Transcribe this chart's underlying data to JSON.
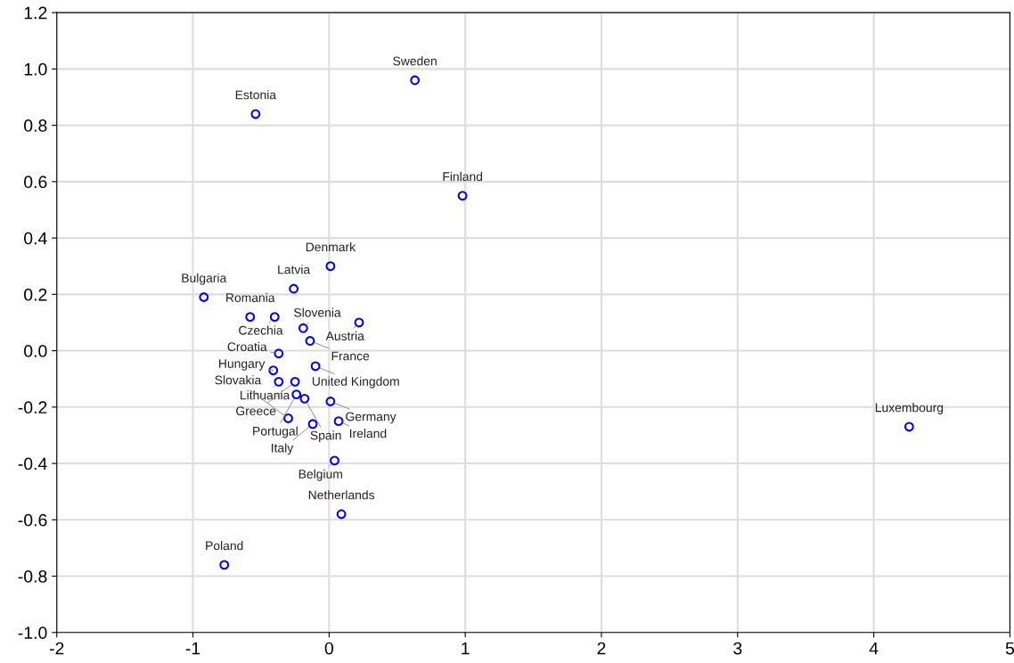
{
  "chart_data": {
    "type": "scatter",
    "series": [
      {
        "color": "#0000ff",
        "x": [
          0.63,
          -0.54,
          0.98,
          0.01,
          -0.26,
          -0.92,
          -0.58,
          -0.4,
          -0.19,
          0.22,
          -0.14,
          -0.37,
          -0.1,
          -0.41,
          -0.37,
          -0.25,
          -0.24,
          -0.18,
          0.01,
          0.07,
          -0.12,
          -0.3,
          4.26,
          0.04,
          0.09,
          -0.77
        ],
        "values": [
          0.96,
          0.84,
          0.55,
          0.3,
          0.22,
          0.19,
          0.12,
          0.12,
          0.08,
          0.1,
          0.035,
          -0.01,
          -0.055,
          -0.07,
          -0.11,
          -0.11,
          -0.155,
          -0.17,
          -0.18,
          -0.25,
          -0.26,
          -0.24,
          -0.27,
          -0.39,
          -0.58,
          -0.76
        ]
      }
    ],
    "annotations": [
      {
        "text": "Sweden",
        "x": 0.63,
        "y": 0.96
      },
      {
        "text": "Estonia",
        "x": -0.54,
        "y": 0.84
      },
      {
        "text": "Finland",
        "x": 0.98,
        "y": 0.55
      },
      {
        "text": "Denmark",
        "x": 0.01,
        "y": 0.3
      },
      {
        "text": "Latvia",
        "x": -0.26,
        "y": 0.22
      },
      {
        "text": "Bulgaria",
        "x": -0.92,
        "y": 0.19
      },
      {
        "text": "Romania",
        "x": -0.58,
        "y": 0.12
      },
      {
        "text": "Czechia",
        "x": -0.4,
        "y": 0.12
      },
      {
        "text": "Slovenia",
        "x": -0.19,
        "y": 0.08
      },
      {
        "text": "Austria",
        "x": 0.22,
        "y": 0.1
      },
      {
        "text": "France",
        "x": -0.14,
        "y": 0.035
      },
      {
        "text": "Croatia",
        "x": -0.37,
        "y": -0.01
      },
      {
        "text": "United Kingdom",
        "x": -0.1,
        "y": -0.055
      },
      {
        "text": "Hungary",
        "x": -0.41,
        "y": -0.07
      },
      {
        "text": "Lithuania",
        "x": -0.37,
        "y": -0.11
      },
      {
        "text": "Greece",
        "x": -0.25,
        "y": -0.11
      },
      {
        "text": "Portugal",
        "x": -0.24,
        "y": -0.155
      },
      {
        "text": "Spain",
        "x": -0.18,
        "y": -0.17
      },
      {
        "text": "Germany",
        "x": 0.01,
        "y": -0.18
      },
      {
        "text": "Ireland",
        "x": 0.07,
        "y": -0.25
      },
      {
        "text": "Italy",
        "x": -0.12,
        "y": -0.26
      },
      {
        "text": "Slovakia",
        "x": -0.3,
        "y": -0.24
      },
      {
        "text": "Luxembourg",
        "x": 4.26,
        "y": -0.27
      },
      {
        "text": "Belgium",
        "x": 0.04,
        "y": -0.39
      },
      {
        "text": "Netherlands",
        "x": 0.09,
        "y": -0.58
      },
      {
        "text": "Poland",
        "x": -0.77,
        "y": -0.76
      }
    ],
    "xlim": [
      -2,
      5
    ],
    "xticks": [
      -2,
      -1,
      0,
      1,
      2,
      3,
      4,
      5
    ],
    "ylim": [
      -1.0,
      1.2
    ],
    "yticks": [
      {
        "value": -1.0,
        "label": "-1.0"
      },
      {
        "value": -0.8,
        "label": "-0.8"
      },
      {
        "value": -0.6,
        "label": "-0.6"
      },
      {
        "value": -0.4,
        "label": "-0.4"
      },
      {
        "value": -0.2,
        "label": "-0.2"
      },
      {
        "value": 0.0,
        "label": "0.0"
      },
      {
        "value": 0.2,
        "label": "0.2"
      },
      {
        "value": 0.4,
        "label": "0.4"
      },
      {
        "value": 0.6,
        "label": "0.6"
      },
      {
        "value": 0.8,
        "label": "0.8"
      },
      {
        "value": 1.0,
        "label": "1.0"
      },
      {
        "value": 1.2,
        "label": "1.2"
      }
    ],
    "grid": true,
    "marker": "circle"
  }
}
